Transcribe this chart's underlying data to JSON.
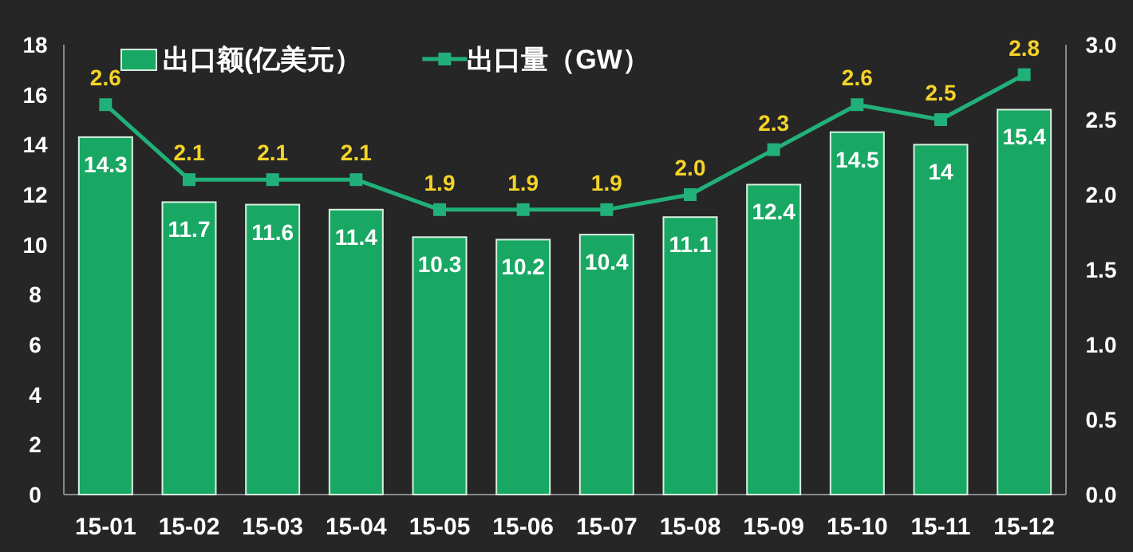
{
  "chart_data": {
    "type": "bar",
    "categories": [
      "15-01",
      "15-02",
      "15-03",
      "15-04",
      "15-05",
      "15-06",
      "15-07",
      "15-08",
      "15-09",
      "15-10",
      "15-11",
      "15-12"
    ],
    "series": [
      {
        "name": "出口额(亿美元）",
        "color": "#19a864",
        "values": [
          14.3,
          11.7,
          11.6,
          11.4,
          10.3,
          10.2,
          10.4,
          11.1,
          12.4,
          14.5,
          14,
          15.4
        ],
        "value_labels": [
          "14.3",
          "11.7",
          "11.6",
          "11.4",
          "10.3",
          "10.2",
          "10.4",
          "11.1",
          "12.4",
          "14.5",
          "14",
          "15.4"
        ]
      },
      {
        "name": "出口量（GW）",
        "type": "line",
        "axis": "y2",
        "color": "#22b07a",
        "marker": "square",
        "values": [
          2.6,
          2.1,
          2.1,
          2.1,
          1.9,
          1.9,
          1.9,
          2.0,
          2.3,
          2.6,
          2.5,
          2.8
        ],
        "value_labels": [
          "2.6",
          "2.1",
          "2.1",
          "2.1",
          "1.9",
          "1.9",
          "1.9",
          "2.0",
          "2.3",
          "2.6",
          "2.5",
          "2.8"
        ]
      }
    ],
    "ylim": [
      0,
      18
    ],
    "yticks": [
      0,
      2,
      4,
      6,
      8,
      10,
      12,
      14,
      16,
      18
    ],
    "y2lim": [
      0,
      3
    ],
    "y2ticks": [
      {
        "value": 0,
        "label": "0.0"
      },
      {
        "value": 0.5,
        "label": "0.5"
      },
      {
        "value": 1,
        "label": "1.0"
      },
      {
        "value": 1.5,
        "label": "1.5"
      },
      {
        "value": 2,
        "label": "2.0"
      },
      {
        "value": 2.5,
        "label": "2.5"
      },
      {
        "value": 3,
        "label": "3.0"
      }
    ],
    "grid": false,
    "legend": "top left"
  }
}
